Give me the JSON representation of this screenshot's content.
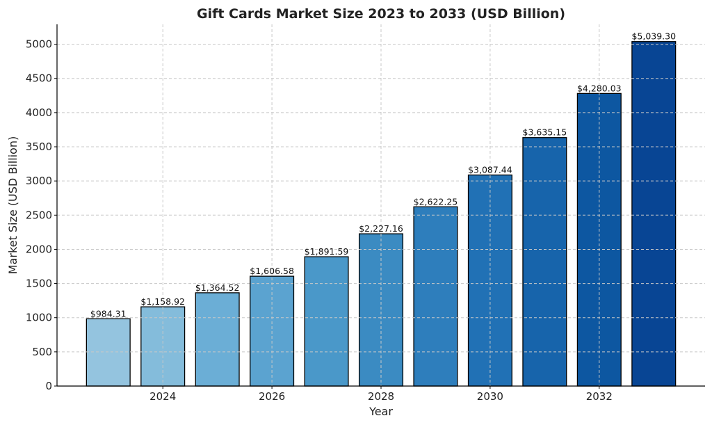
{
  "chart_data": {
    "type": "bar",
    "title": "Gift Cards Market Size 2023 to 2033 (USD Billion)",
    "xlabel": "Year",
    "ylabel": "Market Size (USD Billion)",
    "categories": [
      2023,
      2024,
      2025,
      2026,
      2027,
      2028,
      2029,
      2030,
      2031,
      2032,
      2033
    ],
    "values": [
      984.31,
      1158.92,
      1364.52,
      1606.58,
      1891.59,
      2227.16,
      2622.25,
      3087.44,
      3635.15,
      4280.03,
      5039.3
    ],
    "data_labels": [
      "$984.31",
      "$1,158.92",
      "$1,364.52",
      "$1,606.58",
      "$1,891.59",
      "$2,227.16",
      "$2,622.25",
      "$3,087.44",
      "$3,635.15",
      "$4,280.03",
      "$5,039.30"
    ],
    "colors": [
      "#94c4df",
      "#84bcdb",
      "#6baed6",
      "#5ba3d0",
      "#4a98c9",
      "#3b8bc2",
      "#2e7ebc",
      "#2171b5",
      "#1764ab",
      "#0d57a1",
      "#084594"
    ],
    "xlim": [
      2022.06,
      2033.94
    ],
    "ylim": [
      0,
      5291
    ],
    "xticks": [
      2024,
      2026,
      2028,
      2030,
      2032
    ],
    "yticks": [
      0,
      500,
      1000,
      1500,
      2000,
      2500,
      3000,
      3500,
      4000,
      4500,
      5000
    ],
    "grid": true,
    "bar_edge_color": "#000000"
  }
}
